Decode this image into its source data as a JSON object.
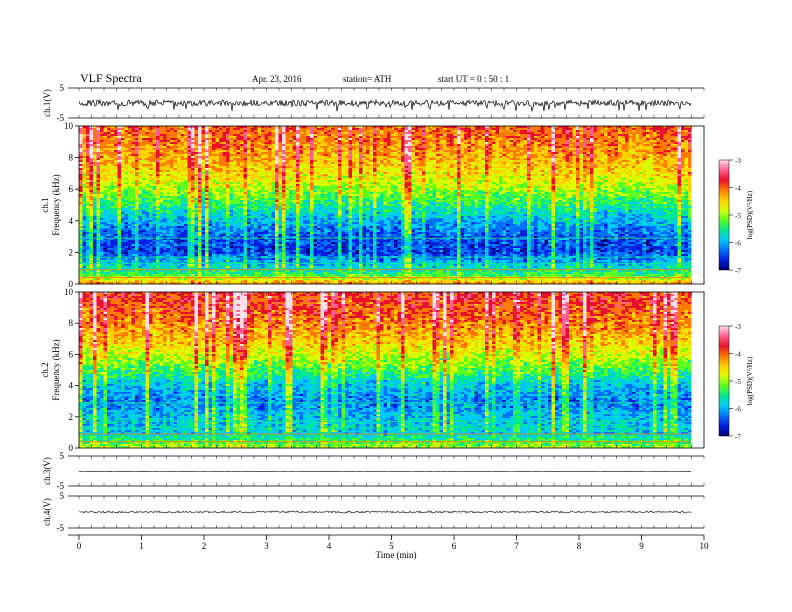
{
  "header": {
    "title": "VLF Spectra",
    "date": "Apr. 23, 2016",
    "station": "station= ATH",
    "start": "start  UT  =    0  : 50 : 1"
  },
  "colorbar": {
    "label": "log(PSD)(V²/Hz)",
    "ticks": [
      "-3",
      "-4",
      "-5",
      "-6",
      "-7"
    ],
    "colors": [
      "#ffe0ea",
      "#ff6090",
      "#e8102a",
      "#ff7a00",
      "#ffd000",
      "#d8ff00",
      "#5aff20",
      "#00e890",
      "#00c8ff",
      "#0070ff",
      "#0020e0",
      "#000070"
    ]
  },
  "chart_data": [
    {
      "type": "line",
      "panel": "ch1-waveform",
      "ylabel": "ch.1(V)",
      "ylim": [
        -5,
        5
      ],
      "yticks": [
        "5",
        "-5"
      ],
      "baseline": 0.0,
      "amplitude_typical": 1.0,
      "spikes_to": -2.5,
      "x_end_min": 9.8
    },
    {
      "type": "heatmap",
      "panel": "ch1-spectrogram",
      "ylabel": "ch.1\nFrequency (kHz)",
      "ylim": [
        0,
        10
      ],
      "yticks": [
        "0",
        "2",
        "4",
        "6",
        "8",
        "10"
      ],
      "zlim": [
        -7,
        -3
      ],
      "x_end_min": 9.8,
      "profile": [
        {
          "f": 0.0,
          "z": -4.2
        },
        {
          "f": 0.5,
          "z": -5.3
        },
        {
          "f": 1.0,
          "z": -5.8
        },
        {
          "f": 2.0,
          "z": -6.6
        },
        {
          "f": 3.0,
          "z": -6.5
        },
        {
          "f": 4.0,
          "z": -6.1
        },
        {
          "f": 5.0,
          "z": -5.6
        },
        {
          "f": 6.0,
          "z": -5.1
        },
        {
          "f": 7.0,
          "z": -4.7
        },
        {
          "f": 8.0,
          "z": -4.4
        },
        {
          "f": 9.0,
          "z": -4.2
        },
        {
          "f": 10.0,
          "z": -4.1
        }
      ]
    },
    {
      "type": "heatmap",
      "panel": "ch2-spectrogram",
      "ylabel": "ch.2\nFrequency (kHz)",
      "ylim": [
        0,
        10
      ],
      "yticks": [
        "0",
        "2",
        "4",
        "6",
        "8",
        "10"
      ],
      "zlim": [
        -7,
        -3
      ],
      "x_end_min": 9.8,
      "profile": [
        {
          "f": 0.0,
          "z": -5.0
        },
        {
          "f": 1.0,
          "z": -5.9
        },
        {
          "f": 2.0,
          "z": -6.0
        },
        {
          "f": 3.0,
          "z": -6.3
        },
        {
          "f": 4.0,
          "z": -6.0
        },
        {
          "f": 5.0,
          "z": -5.4
        },
        {
          "f": 6.0,
          "z": -4.9
        },
        {
          "f": 7.0,
          "z": -4.5
        },
        {
          "f": 8.0,
          "z": -4.2
        },
        {
          "f": 9.0,
          "z": -4.0
        },
        {
          "f": 10.0,
          "z": -3.9
        }
      ]
    },
    {
      "type": "line",
      "panel": "ch3-waveform",
      "ylabel": "ch.3(V)",
      "ylim": [
        -5,
        5
      ],
      "yticks": [
        "5",
        "-5"
      ],
      "baseline": -0.2,
      "amplitude_typical": 0.05,
      "x_end_min": 9.8
    },
    {
      "type": "line",
      "panel": "ch4-waveform",
      "ylabel": "ch.4(V)",
      "ylim": [
        -5,
        5
      ],
      "yticks": [
        "5",
        "-5"
      ],
      "baseline": 0.0,
      "amplitude_typical": 0.3,
      "x_end_min": 9.8
    }
  ],
  "xaxis": {
    "xlabel": "Time  (min)",
    "xlim": [
      0,
      10
    ],
    "ticks": [
      "0",
      "1",
      "2",
      "3",
      "4",
      "5",
      "6",
      "7",
      "8",
      "9",
      "10"
    ]
  }
}
